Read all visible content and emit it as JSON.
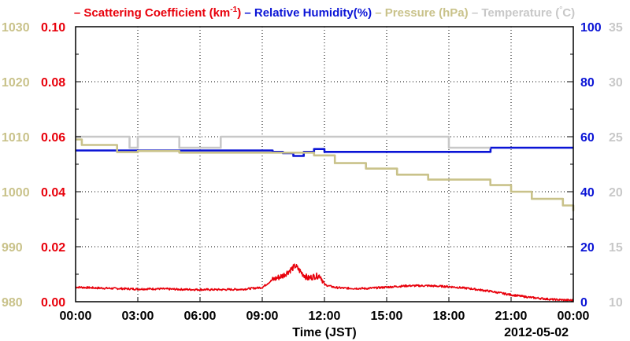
{
  "chart_data": {
    "type": "line",
    "xlabel": "Time (JST)",
    "date_label": "2012-05-02",
    "x_ticks": [
      "00:00",
      "03:00",
      "06:00",
      "09:00",
      "12:00",
      "15:00",
      "18:00",
      "21:00",
      "00:00"
    ],
    "x_range_hours": [
      0,
      24
    ],
    "grid": true,
    "legend_placement": "top",
    "legend": [
      {
        "text": "Scattering Coefficient (km",
        "sup": "-1",
        "tail": ")",
        "color": "#e8000b"
      },
      {
        "text": "Relative Humidity(%)",
        "color": "#0a14d6"
      },
      {
        "text": "Pressure (hPa)",
        "color": "#c9c28a"
      },
      {
        "text": "Temperature (",
        "sup": "°",
        "tail": "C)",
        "color": "#c8c8c8"
      }
    ],
    "axes": {
      "scattering": {
        "ticks": [
          "0.00",
          "0.02",
          "0.04",
          "0.06",
          "0.08",
          "0.10"
        ],
        "range": [
          0,
          0.1
        ],
        "side": "left-inner",
        "color": "#e8000b"
      },
      "pressure": {
        "ticks": [
          "980",
          "990",
          "1000",
          "1010",
          "1020",
          "1030"
        ],
        "range": [
          980,
          1030
        ],
        "side": "left-outer",
        "color": "#c9c28a"
      },
      "humidity": {
        "ticks": [
          "0",
          "20",
          "40",
          "60",
          "80",
          "100"
        ],
        "range": [
          0,
          100
        ],
        "side": "right-inner",
        "color": "#0a14d6"
      },
      "temperature": {
        "ticks": [
          "10",
          "15",
          "20",
          "25",
          "30",
          "35"
        ],
        "range": [
          10,
          35
        ],
        "side": "right-outer",
        "color": "#c8c8c8"
      }
    },
    "series": [
      {
        "name": "Scattering Coefficient (km-1)",
        "axis": "scattering",
        "x": [
          0,
          1,
          2,
          3,
          4,
          5,
          6,
          7,
          8,
          9,
          9.5,
          10,
          10.3,
          10.6,
          10.9,
          11.2,
          11.5,
          11.8,
          12,
          12.5,
          13,
          14,
          15,
          16,
          17,
          18,
          19,
          20,
          21,
          22,
          23,
          24
        ],
        "values": [
          0.0053,
          0.005,
          0.0048,
          0.0046,
          0.0047,
          0.0045,
          0.0044,
          0.0044,
          0.0045,
          0.0052,
          0.008,
          0.0095,
          0.0112,
          0.013,
          0.0105,
          0.0085,
          0.0092,
          0.0095,
          0.0062,
          0.0052,
          0.0049,
          0.0048,
          0.0053,
          0.0058,
          0.0058,
          0.0055,
          0.0048,
          0.0038,
          0.0025,
          0.0015,
          0.0008,
          0.0005
        ],
        "color": "#e8000b"
      },
      {
        "name": "Relative Humidity(%)",
        "axis": "humidity",
        "x": [
          0,
          9,
          9.5,
          10,
          10.5,
          11,
          11.5,
          12,
          20,
          20.01,
          24
        ],
        "values": [
          55,
          55,
          54.5,
          54,
          53,
          54.5,
          55.5,
          54.5,
          54.5,
          56,
          56
        ],
        "color": "#0a14d6"
      },
      {
        "name": "Pressure (hPa)",
        "axis": "pressure",
        "x": [
          0,
          0.3,
          2,
          3,
          5,
          6.5,
          11.5,
          12.5,
          14,
          15.5,
          17,
          20,
          21,
          22,
          23.5,
          24
        ],
        "values": [
          1009.5,
          1008.5,
          1007.2,
          1007.4,
          1007.1,
          1007.1,
          1006.6,
          1005.2,
          1004.2,
          1003.1,
          1002.2,
          1001.2,
          1000,
          998.7,
          997.5,
          996.5
        ],
        "color": "#c9c28a"
      },
      {
        "name": "Temperature (C)",
        "axis": "temperature",
        "x": [
          0,
          2.4,
          2.6,
          2.8,
          3.0,
          4.8,
          5.0,
          6.8,
          7.0,
          17.9,
          18.0,
          20.0
        ],
        "values": [
          25,
          25,
          24,
          24,
          25,
          25,
          24,
          24,
          25,
          25,
          24,
          24
        ],
        "color": "#c8c8c8"
      }
    ]
  }
}
